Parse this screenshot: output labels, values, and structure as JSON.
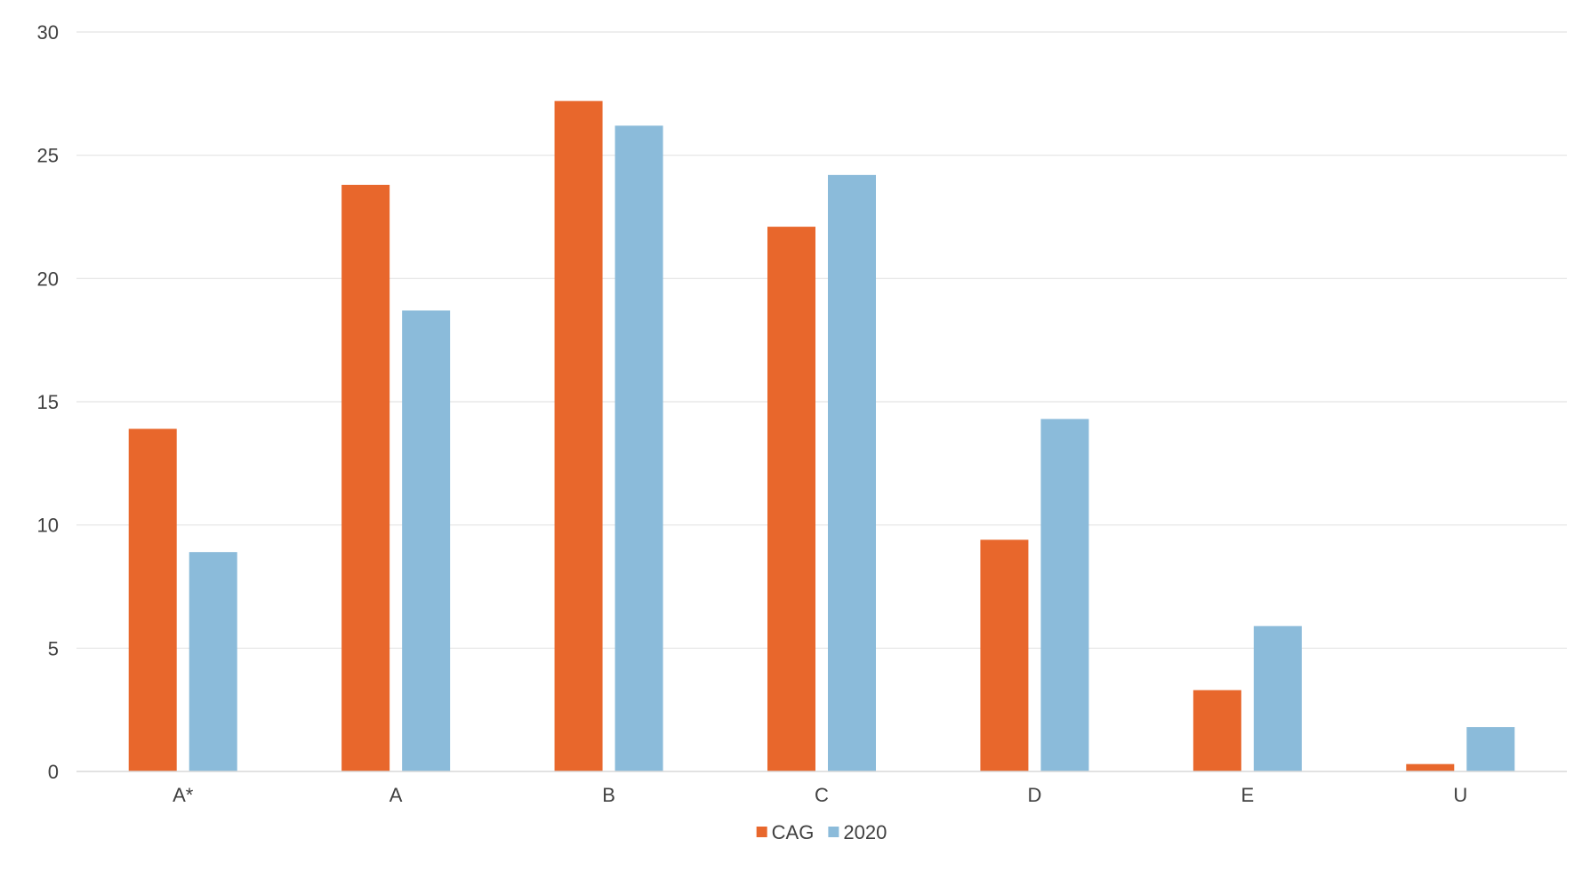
{
  "chart_data": {
    "type": "bar",
    "categories": [
      "A*",
      "A",
      "B",
      "C",
      "D",
      "E",
      "U"
    ],
    "series": [
      {
        "name": "CAG",
        "values": [
          13.9,
          23.8,
          27.2,
          22.1,
          9.4,
          3.3,
          0.3
        ],
        "color": "#E8672C"
      },
      {
        "name": "2020",
        "values": [
          8.9,
          18.7,
          26.2,
          24.2,
          14.3,
          5.9,
          1.8
        ],
        "color": "#8BBBDA"
      }
    ],
    "title": "",
    "xlabel": "",
    "ylabel": "",
    "ylim": [
      0,
      30
    ],
    "yticks": [
      0,
      5,
      10,
      15,
      20,
      25,
      30
    ],
    "grid": true,
    "legend": "bottom-center",
    "gridColor": "#E4E4E4",
    "axisColor": "#D9D9D9",
    "textColor": "#404040"
  }
}
